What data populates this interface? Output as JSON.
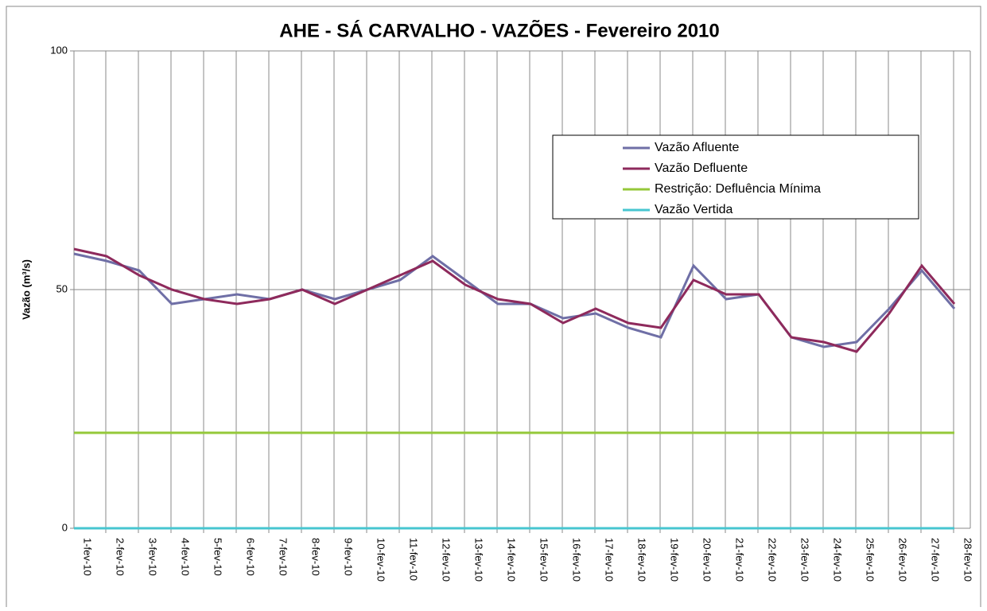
{
  "chart_data": {
    "type": "line",
    "title": "AHE - SÁ CARVALHO - VAZÕES - Fevereiro 2010",
    "y_label": "Vazão (m³/s)",
    "categories": [
      "1-fev-10",
      "2-fev-10",
      "3-fev-10",
      "4-fev-10",
      "5-fev-10",
      "6-fev-10",
      "7-fev-10",
      "8-fev-10",
      "9-fev-10",
      "10-fev-10",
      "11-fev-10",
      "12-fev-10",
      "13-fev-10",
      "14-fev-10",
      "15-fev-10",
      "16-fev-10",
      "17-fev-10",
      "18-fev-10",
      "19-fev-10",
      "20-fev-10",
      "21-fev-10",
      "22-fev-10",
      "23-fev-10",
      "24-fev-10",
      "25-fev-10",
      "26-fev-10",
      "27-fev-10",
      "28-fev-10"
    ],
    "series": [
      {
        "name": "Vazão Afluente",
        "color": "#6f6fa6",
        "values": [
          57.5,
          56,
          54,
          47,
          48,
          49,
          48,
          50,
          48,
          50,
          52,
          57,
          52,
          47,
          47,
          44,
          45,
          42,
          40,
          55,
          48,
          49,
          40,
          38,
          39,
          46,
          54,
          46
        ]
      },
      {
        "name": "Vazão Defluente",
        "color": "#8e2a5c",
        "values": [
          58.5,
          57,
          53,
          50,
          48,
          47,
          48,
          50,
          47,
          50,
          53,
          56,
          51,
          48,
          47,
          43,
          46,
          43,
          42,
          52,
          49,
          49,
          40,
          39,
          37,
          45,
          55,
          47
        ]
      },
      {
        "name": "Restrição: Defluência Mínima",
        "color": "#95c83a",
        "values": [
          20,
          20,
          20,
          20,
          20,
          20,
          20,
          20,
          20,
          20,
          20,
          20,
          20,
          20,
          20,
          20,
          20,
          20,
          20,
          20,
          20,
          20,
          20,
          20,
          20,
          20,
          20,
          20
        ]
      },
      {
        "name": "Vazão Vertida",
        "color": "#47c6d0",
        "values": [
          0,
          0,
          0,
          0,
          0,
          0,
          0,
          0,
          0,
          0,
          0,
          0,
          0,
          0,
          0,
          0,
          0,
          0,
          0,
          0,
          0,
          0,
          0,
          0,
          0,
          0,
          0,
          0
        ]
      }
    ],
    "ylim": [
      0,
      100
    ],
    "yticks": [
      0,
      50,
      100
    ],
    "grid": true,
    "legend": "upper right"
  }
}
